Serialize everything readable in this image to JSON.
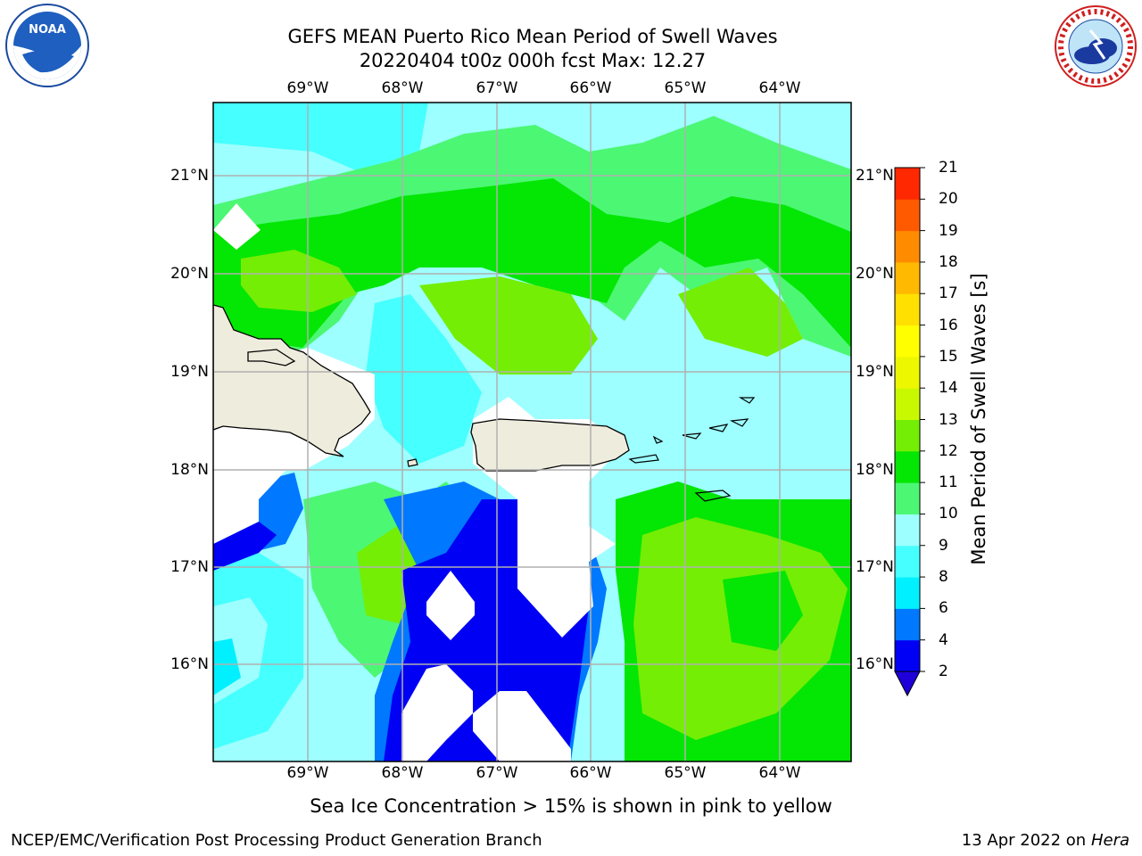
{
  "header": {
    "title_line1": "GEFS MEAN Puerto Rico Mean Period of Swell Waves",
    "title_line2": "20220404 t00z 000h fcst   Max: 12.27"
  },
  "logos": {
    "left": "noaa-logo",
    "right": "national-weather-service-logo"
  },
  "map": {
    "lon_ticks": [
      "69°W",
      "68°W",
      "67°W",
      "66°W",
      "65°W",
      "64°W"
    ],
    "lat_ticks": [
      "21°N",
      "20°N",
      "19°N",
      "18°N",
      "17°N",
      "16°N"
    ],
    "colors": {
      "land": "#eeecdc",
      "no_data": "#ffffff",
      "grid": "#b0b0b0"
    }
  },
  "colorbar": {
    "label": "Mean Period of Swell Waves [s]",
    "levels": [
      "2",
      "4",
      "6",
      "8",
      "9",
      "10",
      "11",
      "12",
      "13",
      "14",
      "15",
      "16",
      "17",
      "18",
      "19",
      "20",
      "21"
    ],
    "colors": [
      "#0000f5",
      "#0078ff",
      "#00f0ff",
      "#46ffff",
      "#9dffff",
      "#4cf774",
      "#04e604",
      "#74ee04",
      "#c8f900",
      "#ecf700",
      "#ffff00",
      "#ffe000",
      "#ffb900",
      "#ff8c00",
      "#ff5a00",
      "#ff2800"
    ],
    "under_color": "#1e00d8"
  },
  "footer": {
    "note": "Sea Ice Concentration > 15% is shown in pink to yellow",
    "left": "NCEP/EMC/Verification Post Processing Product Generation Branch",
    "date": "13 Apr 2022 on ",
    "system": "Hera"
  }
}
